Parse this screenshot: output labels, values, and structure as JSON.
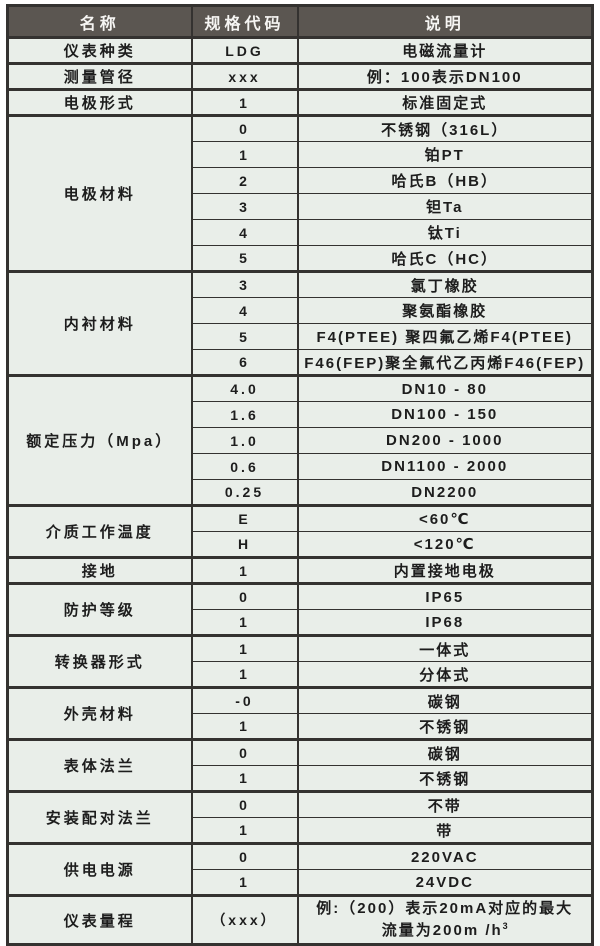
{
  "colors": {
    "header_bg": "#5b5651",
    "header_text": "#f6f5f3",
    "cell_bg": "#e9eee9",
    "border": "#343230",
    "text": "#1d1d1d"
  },
  "table": {
    "headers": [
      "名称",
      "规格代码",
      "说明"
    ],
    "groups": [
      {
        "name": "仪表种类",
        "rows": [
          {
            "code": "LDG",
            "desc": "电磁流量计"
          }
        ]
      },
      {
        "name": "测量管径",
        "rows": [
          {
            "code": "xxx",
            "desc": "例：100表示DN100"
          }
        ]
      },
      {
        "name": "电极形式",
        "rows": [
          {
            "code": "1",
            "desc": "标准固定式"
          }
        ]
      },
      {
        "name": "电极材料",
        "rows": [
          {
            "code": "0",
            "desc": "不锈钢（316L）"
          },
          {
            "code": "1",
            "desc": "铂PT"
          },
          {
            "code": "2",
            "desc": "哈氏B（HB）"
          },
          {
            "code": "3",
            "desc": "钽Ta"
          },
          {
            "code": "4",
            "desc": "钛Ti"
          },
          {
            "code": "5",
            "desc": "哈氏C（HC）"
          }
        ]
      },
      {
        "name": "内衬材料",
        "rows": [
          {
            "code": "3",
            "desc": "氯丁橡胶"
          },
          {
            "code": "4",
            "desc": "聚氨酯橡胶"
          },
          {
            "code": "5",
            "desc": "F4(PTEE) 聚四氟乙烯F4(PTEE)"
          },
          {
            "code": "6",
            "desc": "F46(FEP)聚全氟代乙丙烯F46(FEP)"
          }
        ]
      },
      {
        "name": "额定压力（Mpa）",
        "rows": [
          {
            "code": "4.0",
            "desc": "DN10 - 80"
          },
          {
            "code": "1.6",
            "desc": "DN100 - 150"
          },
          {
            "code": "1.0",
            "desc": "DN200 - 1000"
          },
          {
            "code": "0.6",
            "desc": "DN1100 - 2000"
          },
          {
            "code": "0.25",
            "desc": "DN2200"
          }
        ]
      },
      {
        "name": "介质工作温度",
        "rows": [
          {
            "code": "E",
            "desc": "<60℃"
          },
          {
            "code": "H",
            "desc": "<120℃"
          }
        ]
      },
      {
        "name": "接地",
        "rows": [
          {
            "code": "1",
            "desc": "内置接地电极"
          }
        ]
      },
      {
        "name": "防护等级",
        "rows": [
          {
            "code": "0",
            "desc": "IP65"
          },
          {
            "code": "1",
            "desc": "IP68"
          }
        ]
      },
      {
        "name": "转换器形式",
        "rows": [
          {
            "code": "1",
            "desc": "一体式"
          },
          {
            "code": "1",
            "desc": "分体式"
          }
        ]
      },
      {
        "name": "外壳材料",
        "rows": [
          {
            "code": "-0",
            "desc": "碳钢"
          },
          {
            "code": "1",
            "desc": "不锈钢"
          }
        ]
      },
      {
        "name": "表体法兰",
        "rows": [
          {
            "code": "0",
            "desc": "碳钢"
          },
          {
            "code": "1",
            "desc": "不锈钢"
          }
        ]
      },
      {
        "name": "安装配对法兰",
        "rows": [
          {
            "code": "0",
            "desc": "不带"
          },
          {
            "code": "1",
            "desc": "带"
          }
        ]
      },
      {
        "name": "供电电源",
        "rows": [
          {
            "code": "0",
            "desc": "220VAC"
          },
          {
            "code": "1",
            "desc": "24VDC"
          }
        ]
      },
      {
        "name": "仪表量程",
        "tall": true,
        "rows": [
          {
            "code": "（xxx）",
            "desc_lines": [
              "例:（200）表示20mA对应的最大",
              "流量为200m /h"
            ],
            "desc_sup": "3"
          }
        ]
      }
    ]
  }
}
